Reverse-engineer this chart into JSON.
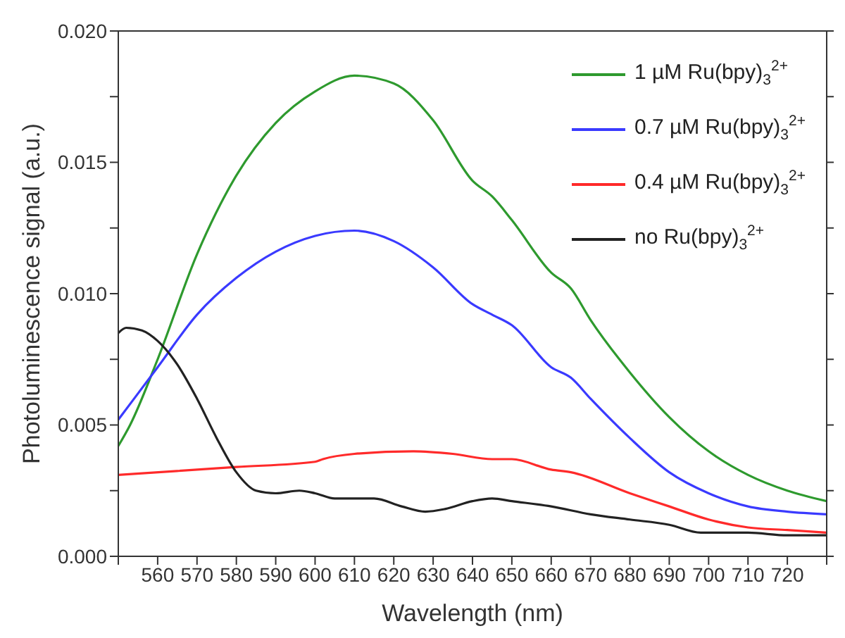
{
  "chart_data": {
    "type": "line",
    "xlabel": "Wavelength (nm)",
    "ylabel": "Photoluminescence signal (a.u.)",
    "xlim": [
      550,
      730
    ],
    "ylim": [
      0,
      0.02
    ],
    "xticks": [
      {
        "value": 550,
        "label": null
      },
      560,
      570,
      580,
      590,
      600,
      610,
      620,
      630,
      640,
      650,
      660,
      670,
      680,
      690,
      700,
      710,
      720,
      {
        "value": 730,
        "label": null
      }
    ],
    "yticks": [
      {
        "value": 0,
        "label": "0.000"
      },
      {
        "value": 0.0025,
        "label": null
      },
      {
        "value": 0.005,
        "label": "0.005"
      },
      {
        "value": 0.0075,
        "label": null
      },
      {
        "value": 0.01,
        "label": "0.010"
      },
      {
        "value": 0.0125,
        "label": null
      },
      {
        "value": 0.015,
        "label": "0.015"
      },
      {
        "value": 0.0175,
        "label": null
      },
      {
        "value": 0.02,
        "label": "0.020"
      }
    ],
    "legend": "top right",
    "marker": "none",
    "line_style": "solid",
    "series": [
      {
        "name": "1 µM Ru(bpy)$_{3}$$^{2+}$",
        "color": "#2e9a2e",
        "x": [
          550,
          553,
          560,
          570,
          580,
          590,
          600,
          610,
          620,
          630,
          640,
          645,
          650,
          660,
          665,
          670,
          680,
          690,
          700,
          710,
          720,
          730
        ],
        "values": [
          0.0042,
          0.005,
          0.0075,
          0.0115,
          0.0145,
          0.0165,
          0.0177,
          0.0183,
          0.018,
          0.0166,
          0.0143,
          0.0137,
          0.0128,
          0.0108,
          0.0102,
          0.009,
          0.007,
          0.0053,
          0.004,
          0.0031,
          0.0025,
          0.0021
        ]
      },
      {
        "name": "0.7 µM Ru(bpy)$_{3}$$^{2+}$",
        "color": "#3a3aff",
        "x": [
          550,
          560,
          570,
          580,
          590,
          600,
          610,
          620,
          630,
          640,
          645,
          650,
          660,
          665,
          670,
          680,
          690,
          700,
          710,
          720,
          730
        ],
        "values": [
          0.0052,
          0.0072,
          0.0092,
          0.0106,
          0.0116,
          0.0122,
          0.0124,
          0.012,
          0.011,
          0.0096,
          0.0092,
          0.0088,
          0.0072,
          0.0068,
          0.006,
          0.0045,
          0.0032,
          0.0024,
          0.0019,
          0.0017,
          0.0016
        ]
      },
      {
        "name": "0.4 µM Ru(bpy)$_{3}$$^{2+}$",
        "color": "#ff2a2a",
        "x": [
          550,
          580,
          600,
          602,
          610,
          625,
          635,
          645,
          650,
          660,
          665,
          680,
          690,
          700,
          710,
          720,
          730
        ],
        "values": [
          0.0031,
          0.0034,
          0.0036,
          0.0037,
          0.0039,
          0.004,
          0.0039,
          0.0037,
          0.0037,
          0.0033,
          0.0032,
          0.0024,
          0.0019,
          0.0014,
          0.0011,
          0.001,
          0.0009
        ]
      },
      {
        "name": "no Ru(bpy)$_{3}$$^{2+}$",
        "color": "#222222",
        "x": [
          550,
          552,
          556,
          560,
          565,
          570,
          575,
          580,
          585,
          590,
          596,
          600,
          605,
          615,
          622,
          628,
          633,
          640,
          645,
          650,
          660,
          670,
          680,
          690,
          698,
          705,
          710,
          720,
          730
        ],
        "values": [
          0.0085,
          0.0087,
          0.0086,
          0.0082,
          0.0073,
          0.006,
          0.0045,
          0.0032,
          0.0025,
          0.0024,
          0.0025,
          0.0024,
          0.0022,
          0.0022,
          0.0019,
          0.0017,
          0.0018,
          0.0021,
          0.0022,
          0.0021,
          0.0019,
          0.0016,
          0.0014,
          0.0012,
          0.0009,
          0.0009,
          0.0009,
          0.0008,
          0.0008
        ]
      }
    ]
  }
}
